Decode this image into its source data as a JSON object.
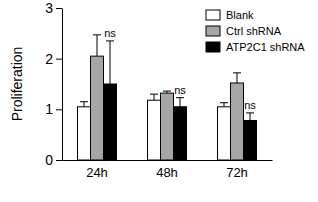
{
  "chart_data": {
    "type": "bar",
    "y_label": "Proliferation",
    "categories": [
      "24h",
      "48h",
      "72h"
    ],
    "series": [
      {
        "name": "Blank",
        "color": "#ffffff",
        "values": [
          1.05,
          1.18,
          1.05
        ],
        "errors": [
          0.1,
          0.12,
          0.08
        ]
      },
      {
        "name": "Ctrl shRNA",
        "color": "#a6a6a6",
        "values": [
          2.05,
          1.32,
          1.52
        ],
        "errors": [
          0.42,
          0.04,
          0.2
        ]
      },
      {
        "name": "ATP2C1 shRNA",
        "color": "#000000",
        "values": [
          1.5,
          1.05,
          0.78
        ],
        "errors": [
          0.85,
          0.18,
          0.15
        ],
        "annotations": [
          "ns",
          "ns",
          "ns"
        ]
      }
    ],
    "ylim": [
      0,
      3
    ],
    "yticks": [
      0,
      1,
      2,
      3
    ],
    "legend": "upper right"
  }
}
